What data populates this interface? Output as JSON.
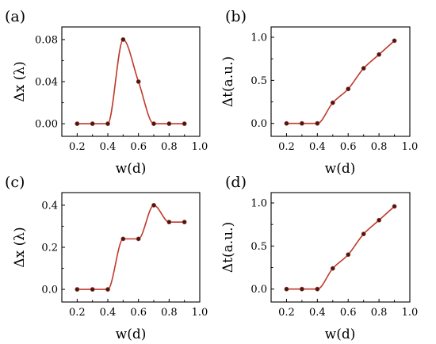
{
  "chart_data": [
    {
      "type": "line",
      "panel_label": "(a)",
      "xlabel": "w(d)",
      "ylabel": "Δx (λ)",
      "xlim": [
        0.1,
        1.0
      ],
      "ylim": [
        -0.012,
        0.092
      ],
      "xticks": [
        "0.2",
        "0.4",
        "0.6",
        "0.8",
        "1.0"
      ],
      "yticks": [
        "0.00",
        "0.04",
        "0.08"
      ],
      "xtick_values": [
        0.2,
        0.4,
        0.6,
        0.8,
        1.0
      ],
      "ytick_values": [
        0.0,
        0.04,
        0.08
      ],
      "x": [
        0.2,
        0.3,
        0.4,
        0.5,
        0.6,
        0.7,
        0.8,
        0.9
      ],
      "series": [
        {
          "values": [
            0.0,
            0.0,
            0.0,
            0.08,
            0.04,
            0.0,
            0.0,
            0.0
          ]
        }
      ],
      "line_color": "#c0392b",
      "marker_color": "#3b1c17",
      "grid": false
    },
    {
      "type": "line",
      "panel_label": "(b)",
      "xlabel": "w(d)",
      "ylabel": "Δt(a.u.)",
      "xlim": [
        0.1,
        1.0
      ],
      "ylim": [
        -0.15,
        1.12
      ],
      "xticks": [
        "0.2",
        "0.4",
        "0.6",
        "0.8",
        "1.0"
      ],
      "yticks": [
        "0.0",
        "0.5",
        "1.0"
      ],
      "xtick_values": [
        0.2,
        0.4,
        0.6,
        0.8,
        1.0
      ],
      "ytick_values": [
        0.0,
        0.5,
        1.0
      ],
      "x": [
        0.2,
        0.3,
        0.4,
        0.5,
        0.6,
        0.7,
        0.8,
        0.9
      ],
      "series": [
        {
          "values": [
            0.0,
            0.0,
            0.0,
            0.24,
            0.4,
            0.64,
            0.8,
            0.96
          ]
        }
      ],
      "line_color": "#c0392b",
      "marker_color": "#3b1c17",
      "grid": false
    },
    {
      "type": "line",
      "panel_label": "(c)",
      "xlabel": "w(d)",
      "ylabel": "Δx (λ)",
      "xlim": [
        0.1,
        1.0
      ],
      "ylim": [
        -0.06,
        0.46
      ],
      "xticks": [
        "0.2",
        "0.4",
        "0.6",
        "0.8",
        "1.0"
      ],
      "yticks": [
        "0.0",
        "0.2",
        "0.4"
      ],
      "xtick_values": [
        0.2,
        0.4,
        0.6,
        0.8,
        1.0
      ],
      "ytick_values": [
        0.0,
        0.2,
        0.4
      ],
      "x": [
        0.2,
        0.3,
        0.4,
        0.5,
        0.6,
        0.7,
        0.8,
        0.9
      ],
      "series": [
        {
          "values": [
            0.0,
            0.0,
            0.0,
            0.24,
            0.24,
            0.4,
            0.32,
            0.32
          ]
        }
      ],
      "line_color": "#c0392b",
      "marker_color": "#3b1c17",
      "grid": false
    },
    {
      "type": "line",
      "panel_label": "(d)",
      "xlabel": "w(d)",
      "ylabel": "Δt(a.u.)",
      "xlim": [
        0.1,
        1.0
      ],
      "ylim": [
        -0.15,
        1.12
      ],
      "xticks": [
        "0.2",
        "0.4",
        "0.6",
        "0.8",
        "1.0"
      ],
      "yticks": [
        "0.0",
        "0.5",
        "1.0"
      ],
      "xtick_values": [
        0.2,
        0.4,
        0.6,
        0.8,
        1.0
      ],
      "ytick_values": [
        0.0,
        0.5,
        1.0
      ],
      "x": [
        0.2,
        0.3,
        0.4,
        0.5,
        0.6,
        0.7,
        0.8,
        0.9
      ],
      "series": [
        {
          "values": [
            0.0,
            0.0,
            0.0,
            0.24,
            0.4,
            0.64,
            0.8,
            0.96
          ]
        }
      ],
      "line_color": "#c0392b",
      "marker_color": "#3b1c17",
      "grid": false
    }
  ]
}
